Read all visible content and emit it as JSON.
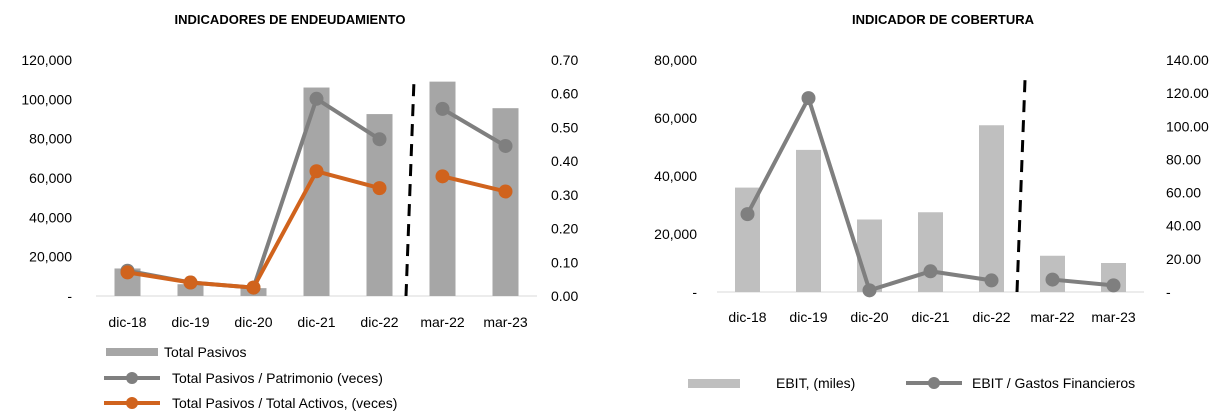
{
  "chart_data": [
    {
      "type": "bar+line",
      "title": "INDICADORES DE ENDEUDAMIENTO",
      "categories": [
        "dic-18",
        "dic-19",
        "dic-20",
        "dic-21",
        "dic-22",
        "mar-22",
        "mar-23"
      ],
      "y_left": {
        "range": [
          0,
          120000
        ],
        "ticks": [
          "-",
          "20,000",
          "40,000",
          "60,000",
          "80,000",
          "100,000",
          "120,000"
        ]
      },
      "y_right": {
        "range": [
          0,
          0.7
        ],
        "ticks": [
          "0.00",
          "0.10",
          "0.20",
          "0.30",
          "0.40",
          "0.50",
          "0.60",
          "0.70"
        ]
      },
      "series": [
        {
          "name": "Total Pasivos",
          "kind": "bar",
          "axis": "left",
          "color": "#a6a6a6",
          "values": [
            14000,
            6000,
            4000,
            106000,
            92500,
            109000,
            95500
          ]
        },
        {
          "name": "Total Pasivos / Patrimonio (veces)",
          "kind": "line",
          "axis": "right",
          "color": "#7f7f7f",
          "segments": [
            [
              0,
              4
            ],
            [
              5,
              6
            ]
          ],
          "values": [
            0.075,
            0.04,
            0.025,
            0.585,
            0.465,
            0.555,
            0.445
          ]
        },
        {
          "name": "Total Pasivos / Total Activos, (veces)",
          "kind": "line",
          "axis": "right",
          "color": "#d0631d",
          "segments": [
            [
              0,
              4
            ],
            [
              5,
              6
            ]
          ],
          "values": [
            0.07,
            0.04,
            0.025,
            0.37,
            0.32,
            0.355,
            0.31
          ]
        }
      ],
      "divider_after_index": 4,
      "legend_position": "bottom-left"
    },
    {
      "type": "bar+line",
      "title": "INDICADOR DE COBERTURA",
      "categories": [
        "dic-18",
        "dic-19",
        "dic-20",
        "dic-21",
        "dic-22",
        "mar-22",
        "mar-23"
      ],
      "y_left": {
        "range": [
          0,
          80000
        ],
        "ticks": [
          "-",
          "20,000",
          "40,000",
          "60,000",
          "80,000"
        ]
      },
      "y_right": {
        "range": [
          0,
          140
        ],
        "ticks": [
          "-",
          "20.00",
          "40.00",
          "60.00",
          "80.00",
          "100.00",
          "120.00",
          "140.00"
        ]
      },
      "series": [
        {
          "name": "EBIT, (miles)",
          "kind": "bar",
          "axis": "left",
          "color": "#bfbfbf",
          "values": [
            36000,
            49000,
            25000,
            27500,
            57500,
            12500,
            10000
          ]
        },
        {
          "name": "EBIT / Gastos Financieros",
          "kind": "line",
          "axis": "right",
          "color": "#7f7f7f",
          "segments": [
            [
              0,
              4
            ],
            [
              5,
              6
            ]
          ],
          "values": [
            47,
            117,
            1,
            12.5,
            7,
            7.5,
            4
          ]
        }
      ],
      "divider_after_index": 4,
      "legend_position": "bottom"
    }
  ]
}
